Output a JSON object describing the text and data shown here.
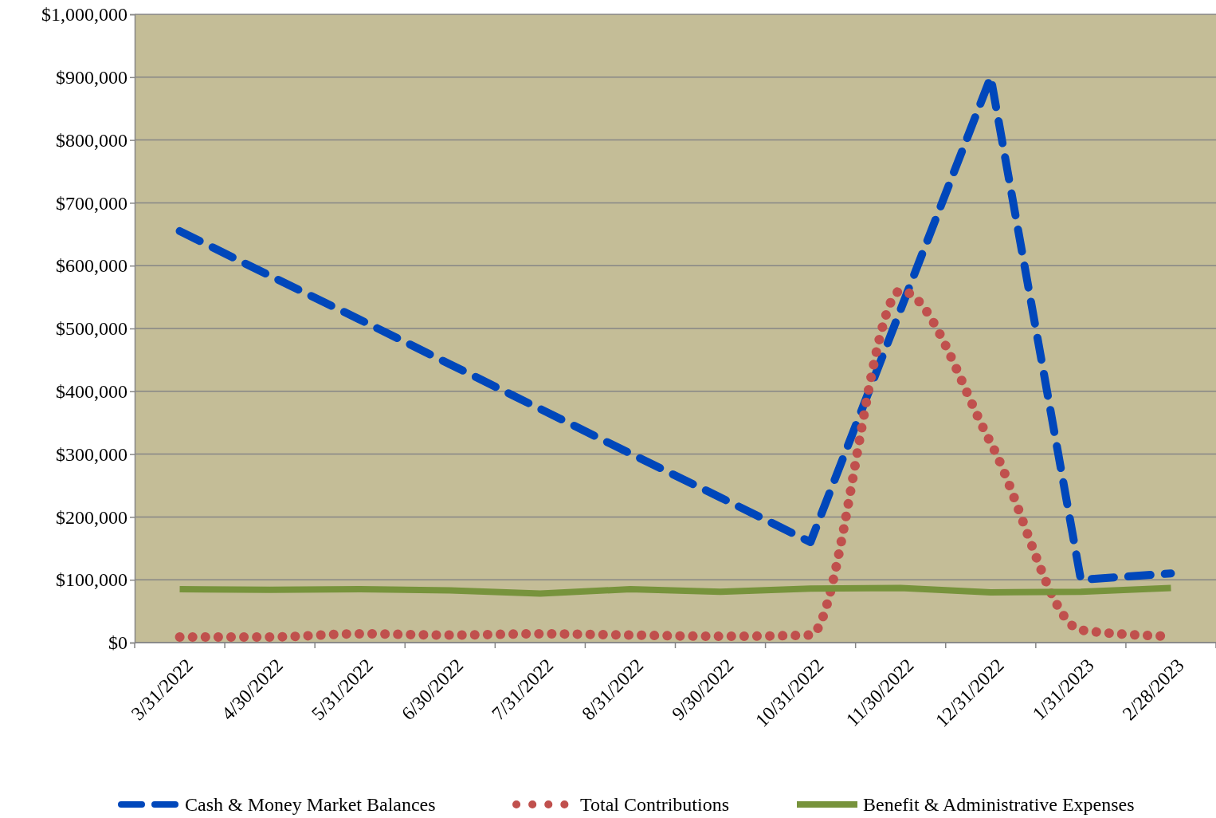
{
  "chart_data": {
    "type": "line",
    "categories": [
      "3/31/2022",
      "4/30/2022",
      "5/31/2022",
      "6/30/2022",
      "7/31/2022",
      "8/31/2022",
      "9/30/2022",
      "10/31/2022",
      "11/30/2022",
      "12/31/2022",
      "1/31/2023",
      "2/28/2023"
    ],
    "series": [
      {
        "name": "Cash & Money Market Balances",
        "color": "#0047bb",
        "line_style": "dashed",
        "values": [
          655000,
          584000,
          514000,
          443000,
          372000,
          301000,
          231000,
          160000,
          530000,
          900000,
          100000,
          110000
        ]
      },
      {
        "name": "Total Contributions",
        "color": "#c0504d",
        "line_style": "dotted",
        "values": [
          9000,
          9000,
          14000,
          12000,
          14000,
          12000,
          10000,
          12000,
          560000,
          318000,
          20000,
          10000
        ]
      },
      {
        "name": "Benefit & Administrative Expenses",
        "color": "#77933c",
        "line_style": "solid",
        "values": [
          85000,
          84000,
          85000,
          83000,
          78000,
          85000,
          81000,
          86000,
          87000,
          80000,
          81000,
          87000
        ]
      }
    ],
    "ylim": [
      0,
      1000000
    ],
    "yticks": [
      {
        "value": 0,
        "label": "$0"
      },
      {
        "value": 100000,
        "label": "$100,000"
      },
      {
        "value": 200000,
        "label": "$200,000"
      },
      {
        "value": 300000,
        "label": "$300,000"
      },
      {
        "value": 400000,
        "label": "$400,000"
      },
      {
        "value": 500000,
        "label": "$500,000"
      },
      {
        "value": 600000,
        "label": "$600,000"
      },
      {
        "value": 700000,
        "label": "$700,000"
      },
      {
        "value": 800000,
        "label": "$800,000"
      },
      {
        "value": 900000,
        "label": "$900,000"
      },
      {
        "value": 1000000,
        "label": "$1,000,000"
      }
    ],
    "grid": "y",
    "legend": "bottom",
    "marker": "none"
  }
}
